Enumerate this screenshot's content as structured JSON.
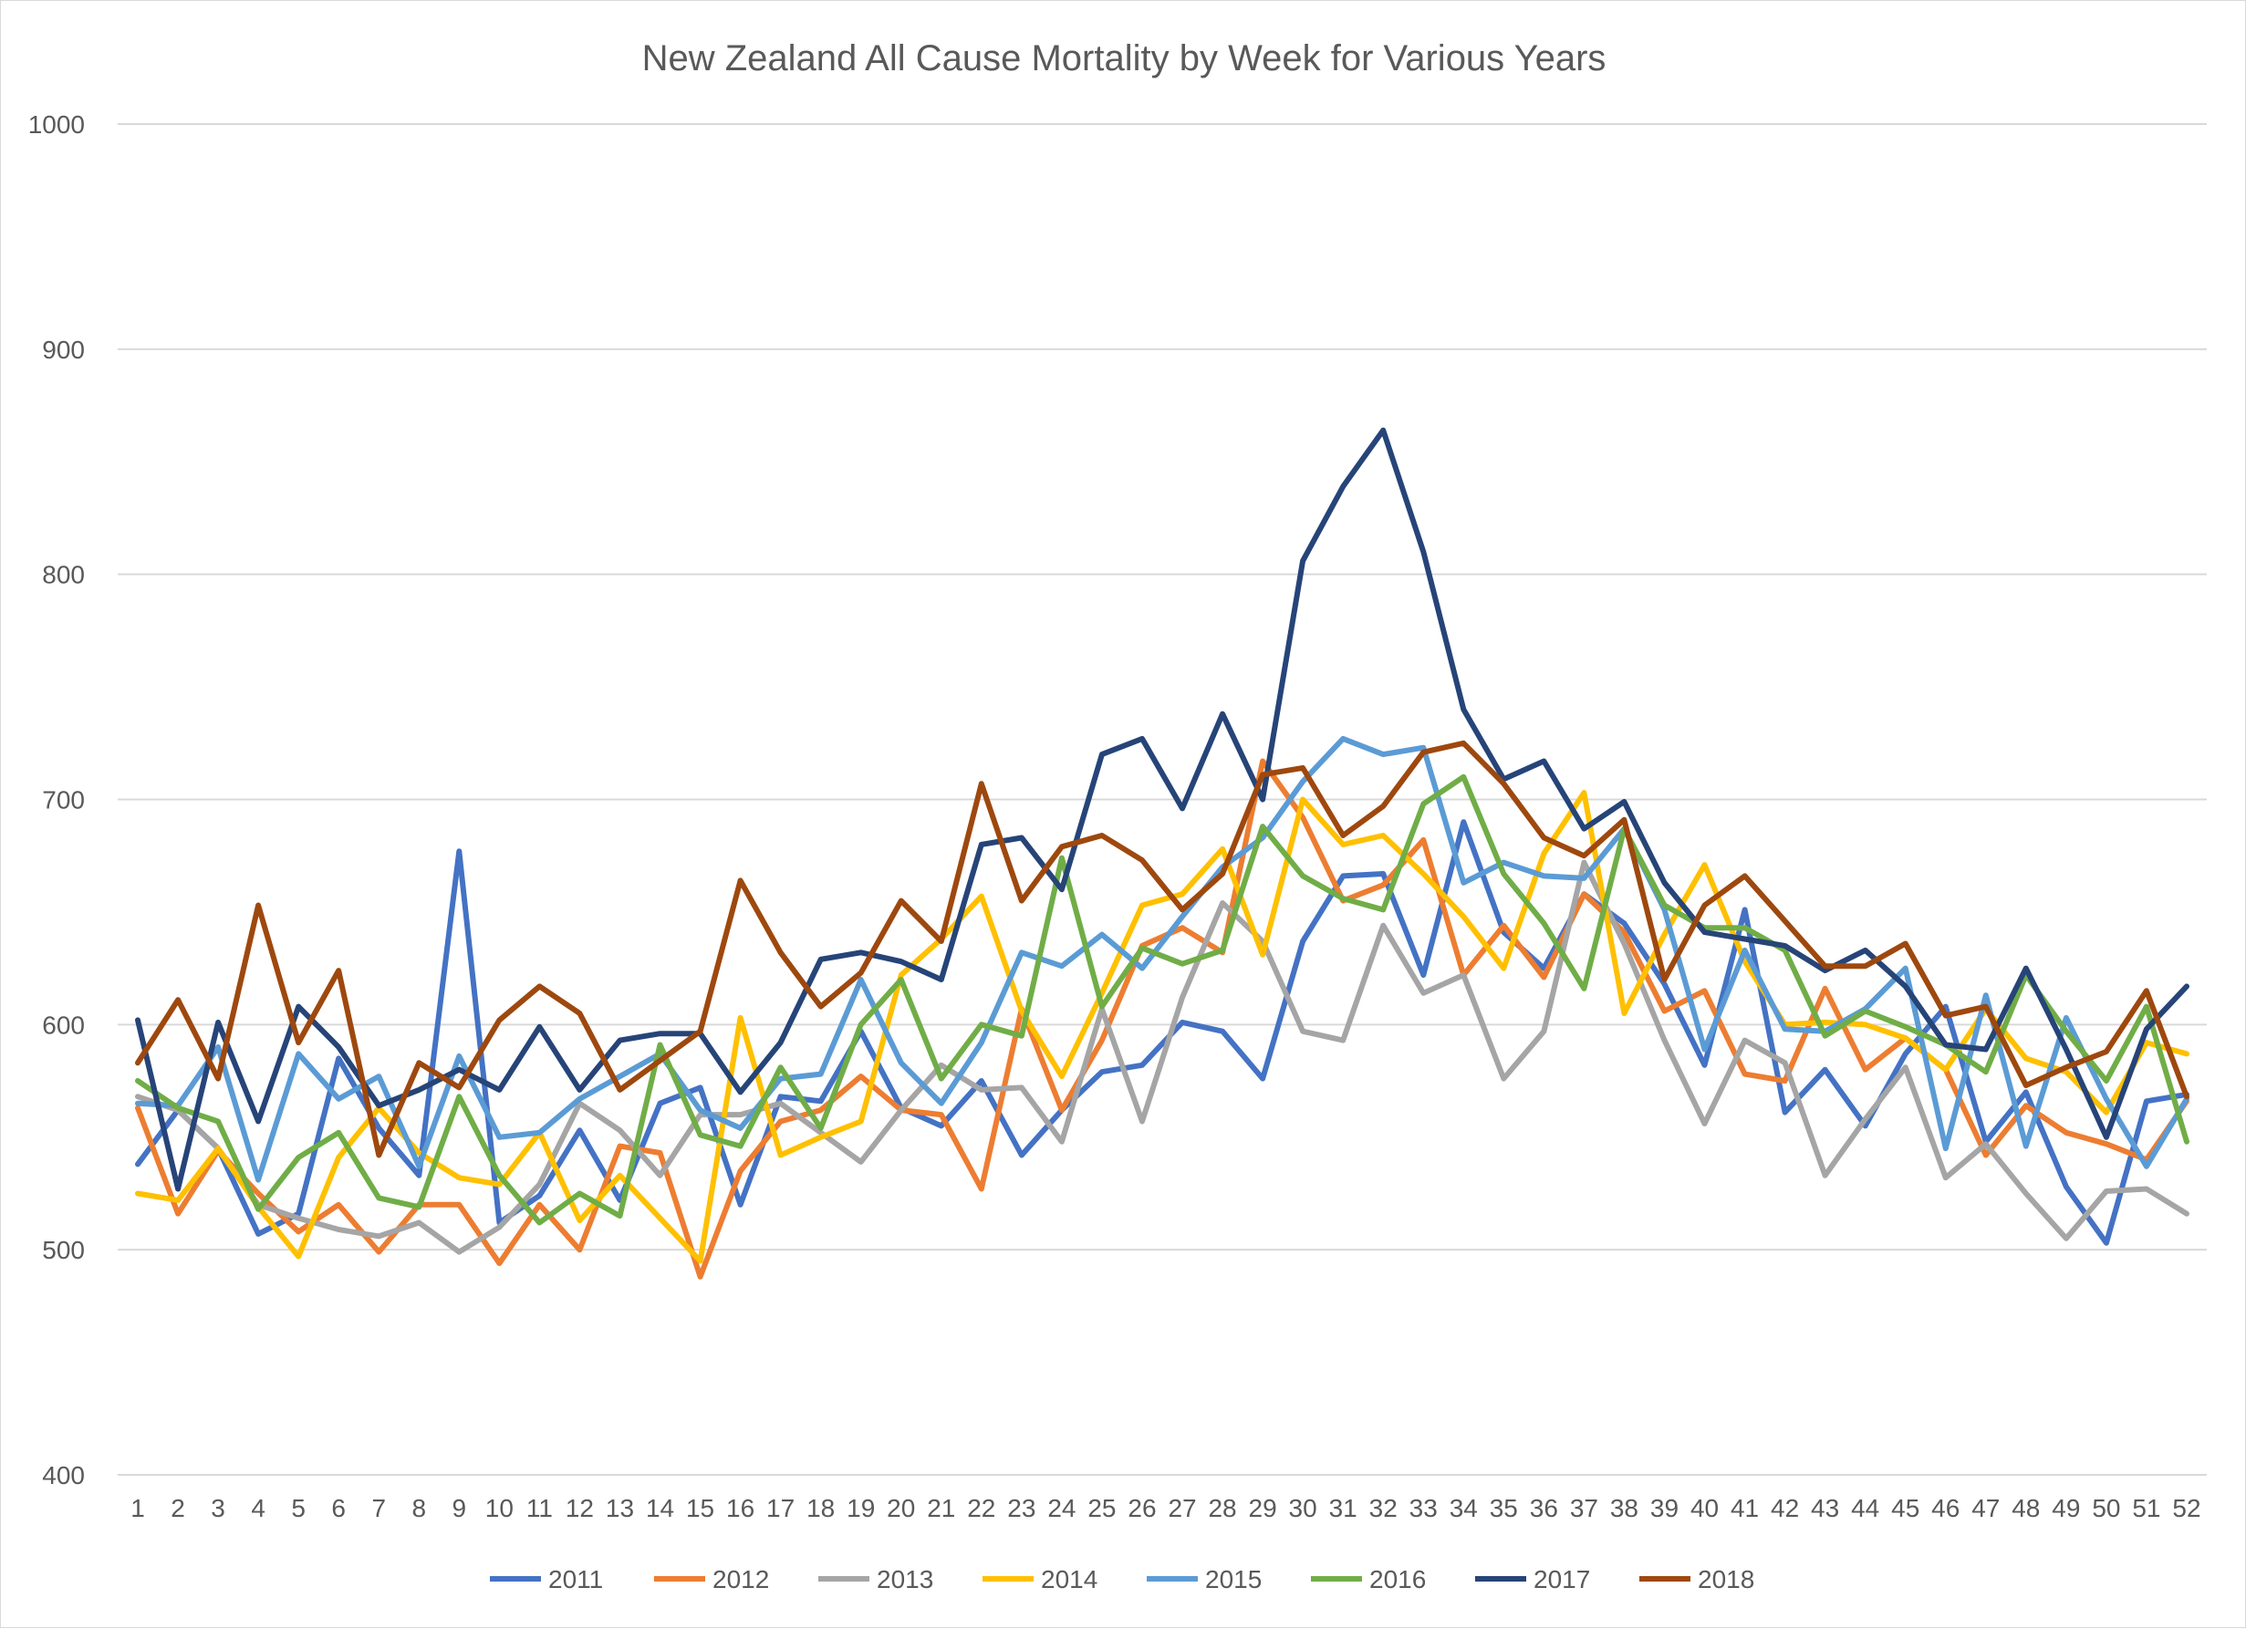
{
  "chart_data": {
    "type": "line",
    "title": "New Zealand All Cause Mortality by Week for Various Years",
    "xlabel": "",
    "ylabel": "",
    "ylim": [
      400,
      1000
    ],
    "yticks": [
      400,
      500,
      600,
      700,
      800,
      900,
      1000
    ],
    "grid": true,
    "legend_position": "bottom",
    "categories": [
      "1",
      "2",
      "3",
      "4",
      "5",
      "6",
      "7",
      "8",
      "9",
      "10",
      "11",
      "12",
      "13",
      "14",
      "15",
      "16",
      "17",
      "18",
      "19",
      "20",
      "21",
      "22",
      "23",
      "24",
      "25",
      "26",
      "27",
      "28",
      "29",
      "30",
      "31",
      "32",
      "33",
      "34",
      "35",
      "36",
      "37",
      "38",
      "39",
      "40",
      "41",
      "42",
      "43",
      "44",
      "45",
      "46",
      "47",
      "48",
      "49",
      "50",
      "51",
      "52"
    ],
    "series": [
      {
        "name": "2011",
        "color": "#4472C4",
        "values": [
          538,
          562,
          545,
          507,
          516,
          585,
          554,
          533,
          677,
          512,
          524,
          553,
          522,
          565,
          572,
          520,
          568,
          566,
          597,
          563,
          555,
          575,
          542,
          562,
          579,
          582,
          601,
          597,
          576,
          637,
          666,
          667,
          622,
          690,
          641,
          625,
          658,
          645,
          618,
          582,
          651,
          561,
          580,
          555,
          587,
          608,
          548,
          570,
          528,
          503,
          566,
          569
        ]
      },
      {
        "name": "2012",
        "color": "#ED7D31",
        "values": [
          563,
          516,
          544,
          525,
          508,
          520,
          499,
          520,
          520,
          494,
          520,
          500,
          546,
          543,
          488,
          535,
          557,
          562,
          577,
          562,
          560,
          527,
          607,
          562,
          593,
          635,
          643,
          632,
          717,
          692,
          655,
          662,
          682,
          622,
          644,
          621,
          658,
          641,
          606,
          615,
          578,
          575,
          616,
          580,
          594,
          580,
          542,
          564,
          552,
          547,
          540,
          566
        ]
      },
      {
        "name": "2013",
        "color": "#A5A5A5",
        "values": [
          568,
          562,
          545,
          520,
          514,
          509,
          506,
          512,
          499,
          510,
          529,
          565,
          553,
          533,
          560,
          560,
          565,
          552,
          539,
          562,
          582,
          571,
          572,
          548,
          607,
          557,
          612,
          654,
          637,
          597,
          593,
          644,
          614,
          622,
          576,
          597,
          672,
          636,
          593,
          556,
          593,
          583,
          533,
          558,
          581,
          532,
          547,
          525,
          505,
          526,
          527,
          516
        ]
      },
      {
        "name": "2014",
        "color": "#FFC000",
        "values": [
          525,
          522,
          545,
          519,
          497,
          541,
          563,
          543,
          532,
          529,
          552,
          513,
          533,
          514,
          495,
          603,
          542,
          550,
          557,
          622,
          638,
          657,
          606,
          577,
          614,
          653,
          658,
          678,
          631,
          700,
          680,
          684,
          667,
          648,
          625,
          676,
          703,
          605,
          640,
          671,
          628,
          600,
          601,
          600,
          594,
          580,
          607,
          585,
          579,
          561,
          592,
          587
        ]
      },
      {
        "name": "2015",
        "color": "#5B9BD5",
        "values": [
          565,
          564,
          590,
          531,
          587,
          567,
          577,
          537,
          586,
          550,
          552,
          567,
          577,
          587,
          562,
          554,
          576,
          578,
          620,
          583,
          565,
          592,
          632,
          626,
          640,
          625,
          648,
          670,
          683,
          708,
          727,
          720,
          723,
          663,
          672,
          666,
          665,
          687,
          651,
          589,
          633,
          598,
          597,
          607,
          625,
          545,
          613,
          546,
          603,
          567,
          537,
          567
        ]
      },
      {
        "name": "2016",
        "color": "#70AD47",
        "values": [
          575,
          563,
          557,
          518,
          541,
          552,
          523,
          519,
          568,
          533,
          512,
          525,
          515,
          591,
          551,
          546,
          581,
          554,
          600,
          620,
          576,
          600,
          595,
          674,
          608,
          634,
          627,
          633,
          688,
          666,
          656,
          651,
          698,
          710,
          667,
          645,
          616,
          687,
          653,
          643,
          643,
          633,
          595,
          606,
          599,
          591,
          579,
          622,
          597,
          575,
          608,
          548
        ]
      },
      {
        "name": "2017",
        "color": "#264478",
        "values": [
          602,
          527,
          601,
          557,
          608,
          590,
          564,
          571,
          580,
          571,
          599,
          571,
          593,
          596,
          596,
          570,
          592,
          629,
          632,
          628,
          620,
          680,
          683,
          660,
          720,
          727,
          696,
          738,
          700,
          806,
          839,
          864,
          810,
          740,
          709,
          717,
          687,
          699,
          663,
          641,
          638,
          635,
          624,
          633,
          617,
          591,
          589,
          625,
          589,
          550,
          598,
          617
        ]
      },
      {
        "name": "2018",
        "color": "#9E480E",
        "values": [
          583,
          611,
          576,
          653,
          592,
          624,
          542,
          583,
          572,
          602,
          617,
          605,
          571,
          584,
          597,
          664,
          632,
          608,
          623,
          655,
          637,
          707,
          655,
          679,
          684,
          673,
          651,
          667,
          711,
          714,
          684,
          697,
          721,
          725,
          707,
          683,
          675,
          691,
          620,
          653,
          666,
          646,
          626,
          626,
          636,
          604,
          608,
          573,
          581,
          588,
          615,
          568
        ]
      }
    ]
  }
}
